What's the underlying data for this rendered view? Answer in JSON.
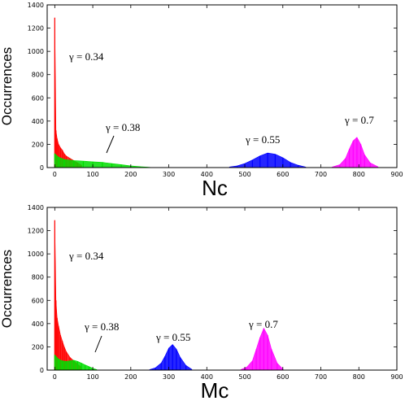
{
  "chart_data": [
    {
      "type": "bar",
      "xlabel": "Nc",
      "ylabel": "Occurrences",
      "xlim": [
        -20,
        900
      ],
      "ylim": [
        0,
        1400
      ],
      "xticks": [
        0,
        100,
        200,
        300,
        400,
        500,
        600,
        700,
        800,
        900
      ],
      "yticks": [
        0,
        200,
        400,
        600,
        800,
        1000,
        1200,
        1400
      ],
      "grid": false,
      "series": [
        {
          "name": "γ = 0.34",
          "color": "#ff0000",
          "x": [
            0,
            3,
            6,
            10,
            15,
            20,
            25,
            30,
            40,
            50,
            60,
            70
          ],
          "values": [
            1290,
            320,
            250,
            200,
            170,
            150,
            120,
            100,
            80,
            60,
            40,
            20
          ]
        },
        {
          "name": "γ = 0.38",
          "color": "#00dd00",
          "x": [
            0,
            10,
            25,
            50,
            75,
            100,
            125,
            150,
            175,
            200,
            225,
            250
          ],
          "values": [
            120,
            90,
            70,
            60,
            55,
            50,
            45,
            35,
            25,
            15,
            8,
            3
          ]
        },
        {
          "name": "γ = 0.55",
          "color": "#0000ff",
          "x": [
            460,
            480,
            500,
            520,
            540,
            560,
            580,
            600,
            620,
            640,
            660
          ],
          "values": [
            5,
            15,
            35,
            65,
            100,
            125,
            115,
            85,
            45,
            20,
            5
          ]
        },
        {
          "name": "γ = 0.7",
          "color": "#ff00ff",
          "x": [
            730,
            750,
            765,
            775,
            785,
            795,
            805,
            815,
            830,
            850
          ],
          "values": [
            5,
            25,
            80,
            160,
            230,
            260,
            200,
            110,
            40,
            8
          ]
        }
      ],
      "annotations": [
        "γ = 0.34",
        "γ = 0.38",
        "γ = 0.55",
        "γ = 0.7"
      ]
    },
    {
      "type": "bar",
      "xlabel": "Mc",
      "ylabel": "Occurrences",
      "xlim": [
        -20,
        900
      ],
      "ylim": [
        0,
        1400
      ],
      "xticks": [
        0,
        100,
        200,
        300,
        400,
        500,
        600,
        700,
        800,
        900
      ],
      "yticks": [
        0,
        200,
        400,
        600,
        800,
        1000,
        1200,
        1400
      ],
      "grid": false,
      "series": [
        {
          "name": "γ = 0.34",
          "color": "#ff0000",
          "x": [
            0,
            3,
            6,
            10,
            15,
            20,
            25,
            30,
            40,
            50,
            60,
            70
          ],
          "values": [
            1290,
            600,
            450,
            380,
            300,
            250,
            200,
            160,
            110,
            80,
            50,
            25
          ]
        },
        {
          "name": "γ = 0.38",
          "color": "#00dd00",
          "x": [
            0,
            10,
            20,
            30,
            40,
            50,
            60,
            70,
            80,
            90,
            100,
            110
          ],
          "values": [
            130,
            95,
            80,
            75,
            80,
            85,
            75,
            60,
            45,
            30,
            15,
            5
          ]
        },
        {
          "name": "γ = 0.55",
          "color": "#0000ff",
          "x": [
            250,
            265,
            280,
            290,
            300,
            310,
            320,
            330,
            345,
            360
          ],
          "values": [
            5,
            20,
            60,
            120,
            190,
            220,
            180,
            110,
            40,
            8
          ]
        },
        {
          "name": "γ = 0.7",
          "color": "#ff00ff",
          "x": [
            490,
            505,
            520,
            530,
            540,
            550,
            560,
            570,
            585,
            600
          ],
          "values": [
            5,
            25,
            80,
            180,
            280,
            360,
            300,
            180,
            60,
            10
          ]
        }
      ],
      "annotations": [
        "γ = 0.34",
        "γ = 0.38",
        "γ = 0.55",
        "γ = 0.7"
      ]
    }
  ]
}
